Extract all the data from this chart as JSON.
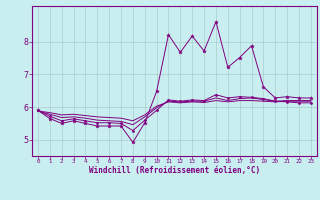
{
  "xlabel": "Windchill (Refroidissement éolien,°C)",
  "background_color": "#c8eef0",
  "grid_color": "#aacccc",
  "line_color": "#800080",
  "x_ticks": [
    0,
    1,
    2,
    3,
    4,
    5,
    6,
    7,
    8,
    9,
    10,
    11,
    12,
    13,
    14,
    15,
    16,
    17,
    18,
    19,
    20,
    21,
    22,
    23
  ],
  "y_ticks": [
    5,
    6,
    7,
    8
  ],
  "ylim": [
    4.5,
    9.1
  ],
  "xlim": [
    -0.5,
    23.5
  ],
  "series1": [
    5.9,
    5.65,
    5.5,
    5.58,
    5.5,
    5.42,
    5.42,
    5.42,
    4.92,
    5.52,
    6.48,
    8.22,
    7.68,
    8.18,
    7.72,
    8.62,
    7.22,
    7.52,
    7.88,
    6.62,
    6.28,
    6.32,
    6.28,
    6.28
  ],
  "series2": [
    5.9,
    5.72,
    5.58,
    5.64,
    5.58,
    5.52,
    5.52,
    5.5,
    5.28,
    5.6,
    5.9,
    6.22,
    6.18,
    6.22,
    6.2,
    6.38,
    6.28,
    6.32,
    6.3,
    6.26,
    6.18,
    6.16,
    6.13,
    6.13
  ],
  "series3": [
    5.88,
    5.78,
    5.68,
    5.7,
    5.66,
    5.6,
    5.58,
    5.56,
    5.46,
    5.7,
    5.98,
    6.18,
    6.16,
    6.18,
    6.18,
    6.28,
    6.2,
    6.26,
    6.28,
    6.23,
    6.18,
    6.2,
    6.2,
    6.2
  ],
  "series4": [
    5.88,
    5.83,
    5.76,
    5.78,
    5.74,
    5.7,
    5.68,
    5.66,
    5.58,
    5.76,
    6.03,
    6.16,
    6.13,
    6.16,
    6.14,
    6.2,
    6.16,
    6.2,
    6.2,
    6.18,
    6.16,
    6.18,
    6.18,
    6.18
  ]
}
